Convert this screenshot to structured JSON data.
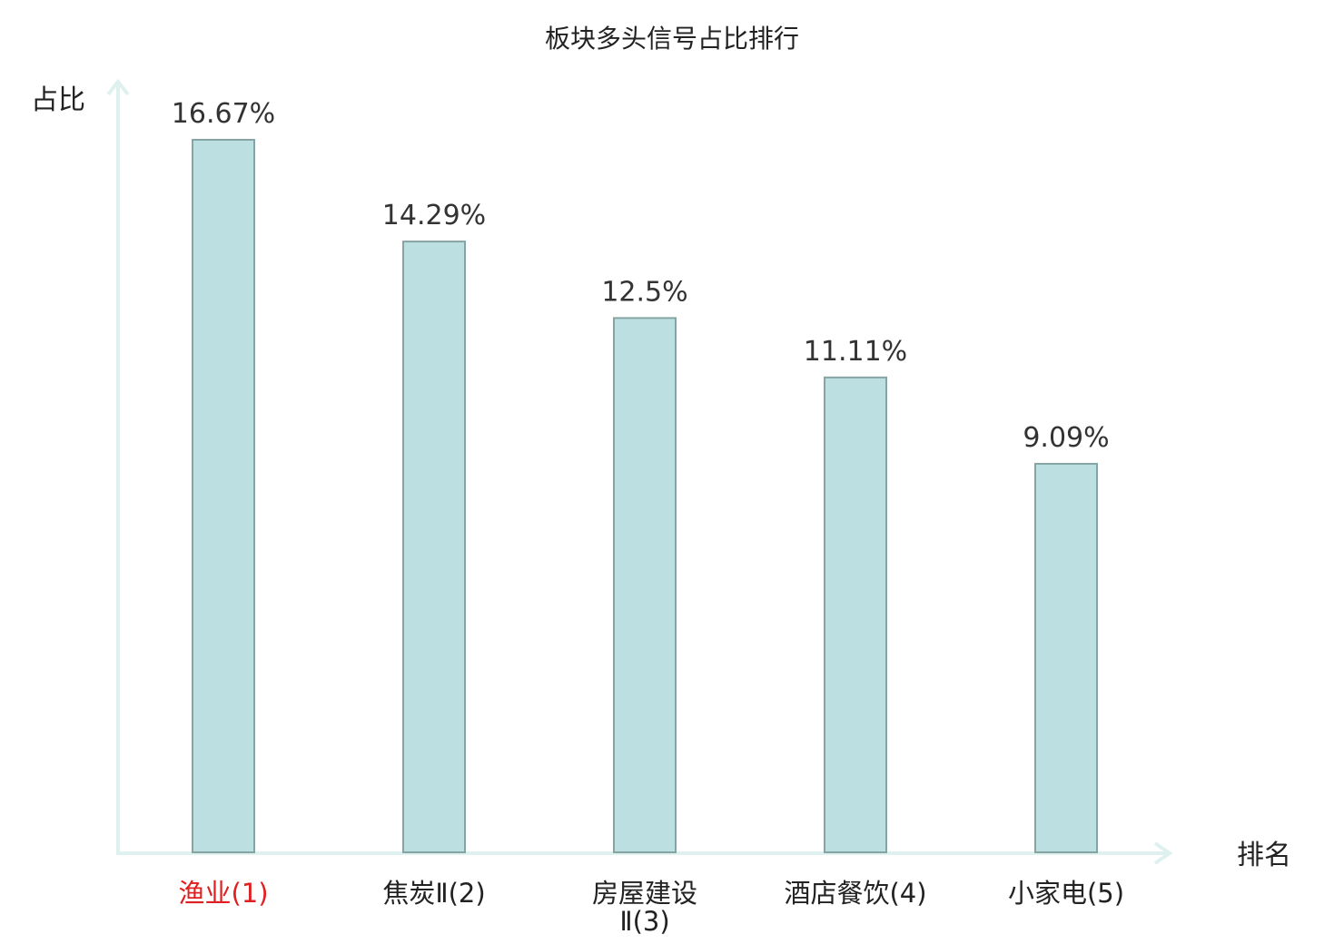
{
  "chart_data": {
    "type": "bar",
    "title": "板块多头信号占比排行",
    "xlabel": "排名",
    "ylabel": "占比",
    "categories": [
      {
        "name": "渔业",
        "rank": "(1)",
        "highlight": true
      },
      {
        "name": "焦炭Ⅱ",
        "rank": "(2)",
        "highlight": false
      },
      {
        "name": "房屋建设",
        "name_line2": "Ⅱ",
        "rank": "(3)",
        "highlight": false
      },
      {
        "name": "酒店餐饮",
        "rank": "(4)",
        "highlight": false
      },
      {
        "name": "小家电",
        "rank": "(5)",
        "highlight": false
      }
    ],
    "values": [
      16.67,
      14.29,
      12.5,
      11.11,
      9.09
    ],
    "value_labels": [
      "16.67%",
      "14.29%",
      "12.5%",
      "11.11%",
      "9.09%"
    ],
    "ylim": [
      0,
      16.67
    ],
    "grid": false
  },
  "colors": {
    "bar_fill": "#bce0e1",
    "bar_stroke": "#86a4a4",
    "axis": "#dff1ef",
    "highlight_text": "#e02020",
    "text": "#222222"
  }
}
